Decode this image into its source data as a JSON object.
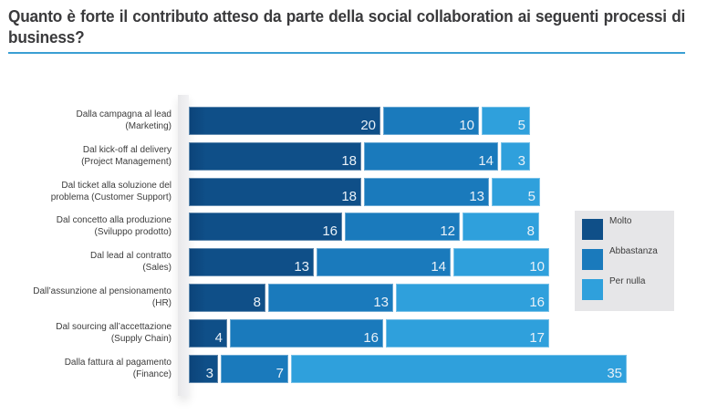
{
  "title": "Quanto è forte il contributo atteso da parte della social collaboration ai seguenti processi di business?",
  "colors": {
    "molto": "#0f4f88",
    "abbastanza": "#1a7abc",
    "per_nulla": "#2fa0dc",
    "title_rule": "#3a9fd3",
    "legend_bg": "#e6e6e8"
  },
  "chart_data": {
    "type": "bar",
    "orientation": "horizontal",
    "stacked": true,
    "title": "Quanto è forte il contributo atteso da parte della social collaboration ai seguenti processi di business?",
    "xlabel": "",
    "ylabel": "",
    "grid": false,
    "legend_position": "right",
    "categories": [
      [
        "Dalla campagna al lead",
        "(Marketing)"
      ],
      [
        "Dal kick-off al delivery",
        "(Project Management)"
      ],
      [
        "Dal ticket alla soluzione del",
        "problema (Customer Support)"
      ],
      [
        "Dal concetto alla produzione",
        "(Sviluppo prodotto)"
      ],
      [
        "Dal lead al contratto",
        "(Sales)"
      ],
      [
        "Dall’assunzione al pensionamento",
        "(HR)"
      ],
      [
        "Dal sourcing all’accettazione",
        "(Supply Chain)"
      ],
      [
        "Dalla fattura al pagamento",
        "(Finance)"
      ]
    ],
    "series": [
      {
        "name": "Molto",
        "color": "#0f4f88",
        "values": [
          20,
          18,
          18,
          16,
          13,
          8,
          4,
          3
        ]
      },
      {
        "name": "Abbastanza",
        "color": "#1a7abc",
        "values": [
          10,
          14,
          13,
          12,
          14,
          13,
          16,
          7
        ]
      },
      {
        "name": "Per nulla",
        "color": "#2fa0dc",
        "values": [
          5,
          3,
          5,
          8,
          10,
          16,
          17,
          35
        ]
      }
    ]
  }
}
